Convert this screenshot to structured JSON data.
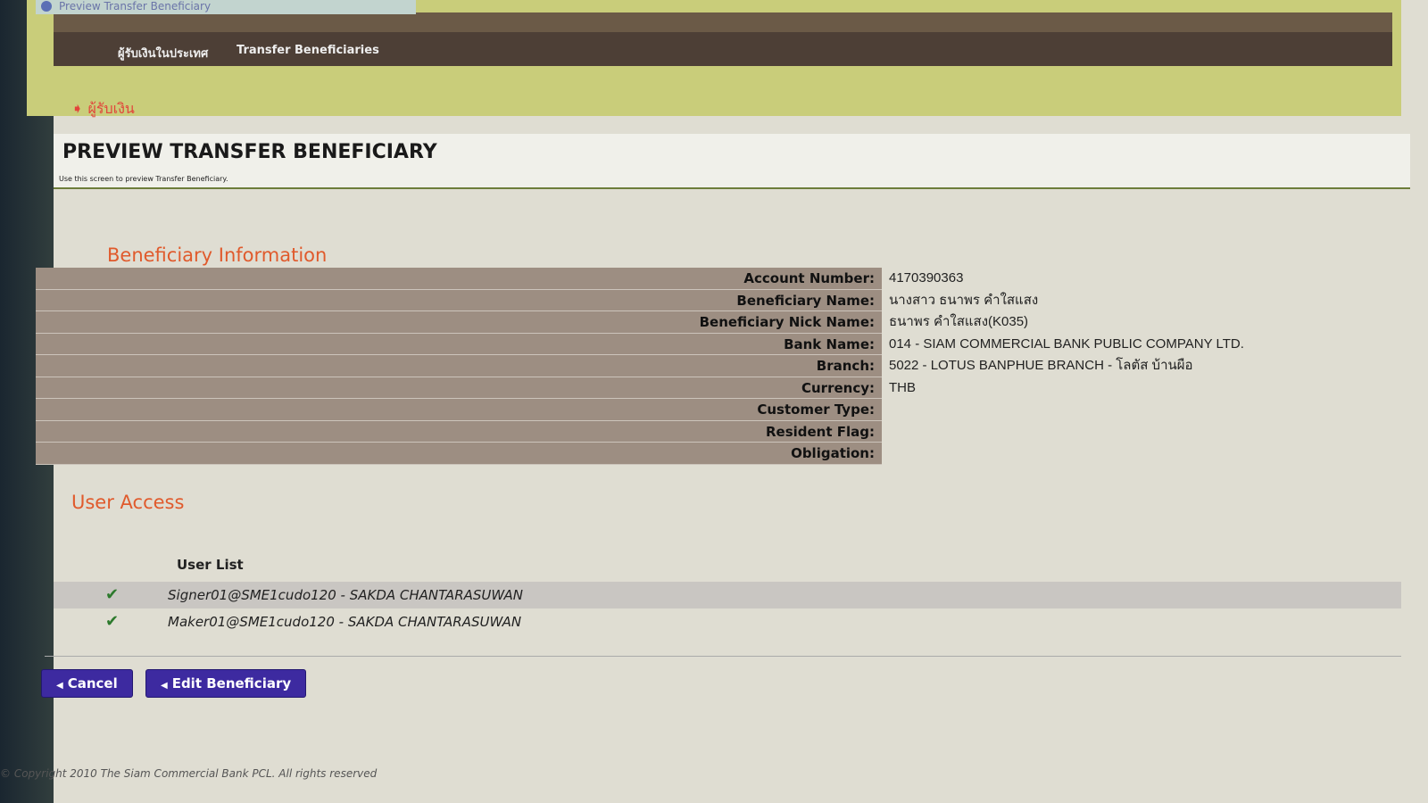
{
  "window": {
    "title": "Preview Transfer Beneficiary"
  },
  "nav": {
    "items": [
      "ผู้รับเงินในประเทศ",
      "Transfer Beneficiaries"
    ]
  },
  "breadcrumb": "ผู้รับเงิน",
  "header": {
    "title": "PREVIEW TRANSFER BENEFICIARY",
    "subtitle": "Use this screen to preview Transfer Beneficiary."
  },
  "beneficiary": {
    "section_title": "Beneficiary Information",
    "fields": [
      {
        "label": "Account Number:",
        "value": "4170390363"
      },
      {
        "label": "Beneficiary Name:",
        "value": "นางสาว ธนาพร คำใสแสง"
      },
      {
        "label": "Beneficiary Nick Name:",
        "value": "ธนาพร คำใสแสง(K035)"
      },
      {
        "label": "Bank Name:",
        "value": "014 - SIAM COMMERCIAL BANK PUBLIC COMPANY LTD."
      },
      {
        "label": "Branch:",
        "value": "5022 - LOTUS BANPHUE BRANCH - โลตัส บ้านผือ"
      },
      {
        "label": "Currency:",
        "value": "THB"
      },
      {
        "label": "Customer Type:",
        "value": ""
      },
      {
        "label": "Resident Flag:",
        "value": ""
      },
      {
        "label": "Obligation:",
        "value": ""
      }
    ]
  },
  "user_access": {
    "section_title": "User Access",
    "list_header": "User List",
    "users": [
      {
        "name": "Signer01@SME1cudo120 - SAKDA   CHANTARASUWAN",
        "checked": true
      },
      {
        "name": "Maker01@SME1cudo120 - SAKDA   CHANTARASUWAN",
        "checked": true
      }
    ]
  },
  "buttons": {
    "cancel": "Cancel",
    "edit": "Edit Beneficiary"
  },
  "footer": "© Copyright 2010 The Siam Commercial Bank PCL. All rights reserved",
  "colors": {
    "accent": "#e05a2c",
    "button": "#3d2aa0",
    "nav": "#4d3f36",
    "label_bg": "#9d8e82"
  }
}
